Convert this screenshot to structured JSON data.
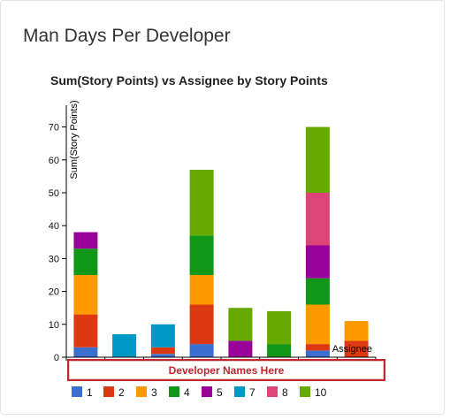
{
  "card": {
    "title": "Man Days Per Developer"
  },
  "annotation": {
    "text": "Developer Names Here"
  },
  "colors": {
    "card_border": "#e3e3e3",
    "annotation_border": "#c0272d"
  },
  "chart_data": {
    "type": "bar",
    "stacked": true,
    "title": "Sum(Story Points) vs Assignee by Story Points",
    "xlabel": "Assignee",
    "ylabel": "Sum(Story Points)",
    "ylim": [
      0,
      75
    ],
    "yticks": [
      0,
      10,
      20,
      30,
      40,
      50,
      60,
      70
    ],
    "categories": [
      "",
      "",
      "",
      "",
      "",
      "",
      "",
      ""
    ],
    "legend_position": "bottom",
    "grid": false,
    "series": [
      {
        "name": "1",
        "color": "#3a6fcf",
        "values": [
          3,
          0,
          1,
          4,
          0,
          0,
          2,
          0
        ]
      },
      {
        "name": "2",
        "color": "#dc3912",
        "values": [
          10,
          0,
          2,
          12,
          0,
          0,
          2,
          5
        ]
      },
      {
        "name": "3",
        "color": "#ff9900",
        "values": [
          12,
          0,
          0,
          9,
          0,
          0,
          12,
          6
        ]
      },
      {
        "name": "4",
        "color": "#109618",
        "values": [
          8,
          0,
          0,
          12,
          0,
          4,
          8,
          0
        ]
      },
      {
        "name": "5",
        "color": "#990099",
        "values": [
          5,
          0,
          0,
          0,
          5,
          0,
          10,
          0
        ]
      },
      {
        "name": "7",
        "color": "#0099c6",
        "values": [
          0,
          7,
          7,
          0,
          0,
          0,
          0,
          0
        ]
      },
      {
        "name": "8",
        "color": "#dd4477",
        "values": [
          0,
          0,
          0,
          0,
          0,
          0,
          16,
          0
        ]
      },
      {
        "name": "10",
        "color": "#66aa00",
        "values": [
          0,
          0,
          0,
          20,
          10,
          10,
          20,
          0
        ]
      }
    ]
  }
}
